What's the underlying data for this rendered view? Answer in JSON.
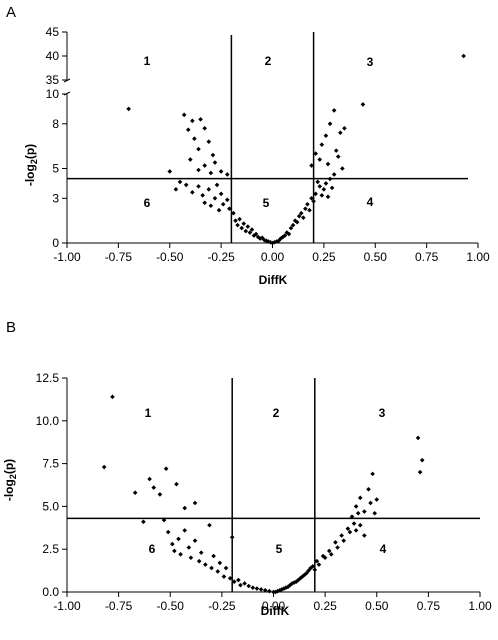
{
  "chart_data": [
    {
      "panel": "A",
      "type": "scatter",
      "xlabel": "DiffK",
      "ylabel": "-log2(p)",
      "xlim": [
        -1.0,
        1.0
      ],
      "x_ticks": [
        "-1.00",
        "-0.75",
        "-0.50",
        "-0.25",
        "0.00",
        "0.25",
        "0.50",
        "0.75",
        "1.00"
      ],
      "ylim": [
        0,
        45
      ],
      "y_axis_break": {
        "lower": [
          0,
          10
        ],
        "upper": [
          35,
          45
        ]
      },
      "y_ticks": [
        "0",
        "3",
        "5",
        "8",
        "10",
        "35",
        "40",
        "45"
      ],
      "thresholds": {
        "x": [
          -0.2,
          0.2
        ],
        "y": 4.32
      },
      "region_labels": [
        "1",
        "2",
        "3",
        "4",
        "5",
        "6"
      ],
      "series": [
        {
          "points": [
            [
              -0.7,
              9.0
            ],
            [
              0.93,
              40.0
            ],
            [
              0.44,
              9.3
            ],
            [
              -0.43,
              8.6
            ],
            [
              -0.39,
              8.2
            ],
            [
              -0.35,
              8.3
            ],
            [
              -0.41,
              7.6
            ],
            [
              -0.33,
              7.7
            ],
            [
              -0.38,
              7.0
            ],
            [
              -0.31,
              6.8
            ],
            [
              -0.36,
              6.3
            ],
            [
              -0.29,
              5.9
            ],
            [
              -0.4,
              5.6
            ],
            [
              -0.33,
              5.2
            ],
            [
              -0.28,
              5.4
            ],
            [
              -0.36,
              4.9
            ],
            [
              -0.3,
              4.7
            ],
            [
              -0.25,
              4.8
            ],
            [
              -0.22,
              4.6
            ],
            [
              -0.5,
              4.8
            ],
            [
              -0.45,
              4.1
            ],
            [
              -0.47,
              3.6
            ],
            [
              -0.42,
              3.9
            ],
            [
              -0.39,
              3.4
            ],
            [
              -0.36,
              3.8
            ],
            [
              -0.34,
              3.2
            ],
            [
              -0.31,
              3.6
            ],
            [
              -0.28,
              3.0
            ],
            [
              -0.27,
              3.9
            ],
            [
              -0.25,
              3.3
            ],
            [
              -0.24,
              2.6
            ],
            [
              -0.22,
              2.9
            ],
            [
              -0.21,
              2.3
            ],
            [
              -0.26,
              2.2
            ],
            [
              -0.3,
              2.5
            ],
            [
              -0.33,
              2.7
            ],
            [
              -0.19,
              2.0
            ],
            [
              -0.18,
              1.5
            ],
            [
              -0.17,
              1.2
            ],
            [
              -0.16,
              1.6
            ],
            [
              -0.15,
              1.0
            ],
            [
              -0.14,
              1.3
            ],
            [
              -0.13,
              0.8
            ],
            [
              -0.12,
              1.1
            ],
            [
              -0.11,
              0.7
            ],
            [
              -0.1,
              0.9
            ],
            [
              -0.09,
              0.5
            ],
            [
              -0.08,
              0.6
            ],
            [
              -0.07,
              0.4
            ],
            [
              -0.06,
              0.3
            ],
            [
              -0.05,
              0.35
            ],
            [
              -0.04,
              0.2
            ],
            [
              -0.03,
              0.15
            ],
            [
              -0.02,
              0.1
            ],
            [
              -0.01,
              0.05
            ],
            [
              0.0,
              0.0
            ],
            [
              0.01,
              0.05
            ],
            [
              0.02,
              0.1
            ],
            [
              0.03,
              0.15
            ],
            [
              0.04,
              0.3
            ],
            [
              0.05,
              0.4
            ],
            [
              0.06,
              0.5
            ],
            [
              0.07,
              0.7
            ],
            [
              0.08,
              0.6
            ],
            [
              0.09,
              1.0
            ],
            [
              0.1,
              1.2
            ],
            [
              0.11,
              1.5
            ],
            [
              0.12,
              1.4
            ],
            [
              0.13,
              1.8
            ],
            [
              0.14,
              2.0
            ],
            [
              0.15,
              1.7
            ],
            [
              0.16,
              2.3
            ],
            [
              0.17,
              2.6
            ],
            [
              0.18,
              2.2
            ],
            [
              0.19,
              3.0
            ],
            [
              0.2,
              2.8
            ],
            [
              0.21,
              3.3
            ],
            [
              0.23,
              3.8
            ],
            [
              0.24,
              3.2
            ],
            [
              0.22,
              4.1
            ],
            [
              0.25,
              3.6
            ],
            [
              0.26,
              4.0
            ],
            [
              0.27,
              3.1
            ],
            [
              0.28,
              4.3
            ],
            [
              0.29,
              3.7
            ],
            [
              0.19,
              5.2
            ],
            [
              0.21,
              6.0
            ],
            [
              0.23,
              5.6
            ],
            [
              0.24,
              6.6
            ],
            [
              0.26,
              7.2
            ],
            [
              0.28,
              8.0
            ],
            [
              0.3,
              8.9
            ],
            [
              0.31,
              6.2
            ],
            [
              0.33,
              7.4
            ],
            [
              0.35,
              7.7
            ],
            [
              0.27,
              5.3
            ],
            [
              0.32,
              5.8
            ],
            [
              0.34,
              5.0
            ],
            [
              0.3,
              4.6
            ]
          ]
        }
      ]
    },
    {
      "panel": "B",
      "type": "scatter",
      "xlabel": "DiffK",
      "ylabel": "-log2(p)",
      "xlim": [
        -1.0,
        1.0
      ],
      "x_ticks": [
        "-1.00",
        "-0.75",
        "-0.50",
        "-0.25",
        "0.00",
        "0.25",
        "0.50",
        "0.75",
        "1.00"
      ],
      "ylim": [
        0,
        12.5
      ],
      "y_ticks": [
        "0.0",
        "2.5",
        "5.0",
        "7.5",
        "10.0",
        "12.5"
      ],
      "thresholds": {
        "x": [
          -0.2,
          0.2
        ],
        "y": 4.3
      },
      "region_labels": [
        "1",
        "2",
        "3",
        "4",
        "5",
        "6"
      ],
      "series": [
        {
          "points": [
            [
              -0.78,
              11.4
            ],
            [
              -0.82,
              7.3
            ],
            [
              -0.67,
              5.8
            ],
            [
              -0.63,
              4.1
            ],
            [
              -0.6,
              6.6
            ],
            [
              -0.58,
              6.1
            ],
            [
              -0.55,
              5.7
            ],
            [
              -0.52,
              7.2
            ],
            [
              -0.47,
              6.3
            ],
            [
              -0.43,
              4.9
            ],
            [
              -0.38,
              5.2
            ],
            [
              -0.53,
              4.2
            ],
            [
              -0.51,
              3.5
            ],
            [
              -0.49,
              2.8
            ],
            [
              -0.48,
              2.4
            ],
            [
              -0.46,
              3.1
            ],
            [
              -0.45,
              2.2
            ],
            [
              -0.43,
              3.6
            ],
            [
              -0.41,
              2.6
            ],
            [
              -0.4,
              2.0
            ],
            [
              -0.38,
              3.0
            ],
            [
              -0.36,
              1.8
            ],
            [
              -0.35,
              2.3
            ],
            [
              -0.33,
              1.6
            ],
            [
              -0.31,
              3.9
            ],
            [
              -0.3,
              1.4
            ],
            [
              -0.29,
              2.1
            ],
            [
              -0.27,
              1.2
            ],
            [
              -0.26,
              1.7
            ],
            [
              -0.24,
              0.9
            ],
            [
              -0.23,
              1.4
            ],
            [
              -0.21,
              0.8
            ],
            [
              -0.2,
              3.2
            ],
            [
              -0.19,
              0.6
            ],
            [
              -0.17,
              0.7
            ],
            [
              -0.16,
              0.4
            ],
            [
              -0.14,
              0.5
            ],
            [
              -0.12,
              0.35
            ],
            [
              -0.1,
              0.25
            ],
            [
              -0.08,
              0.2
            ],
            [
              -0.06,
              0.15
            ],
            [
              -0.04,
              0.1
            ],
            [
              -0.02,
              0.05
            ],
            [
              0.0,
              0.0
            ],
            [
              0.01,
              0.0
            ],
            [
              0.02,
              0.05
            ],
            [
              0.03,
              0.1
            ],
            [
              0.04,
              0.15
            ],
            [
              0.05,
              0.2
            ],
            [
              0.06,
              0.25
            ],
            [
              0.07,
              0.3
            ],
            [
              0.08,
              0.4
            ],
            [
              0.09,
              0.5
            ],
            [
              0.1,
              0.55
            ],
            [
              0.11,
              0.6
            ],
            [
              0.12,
              0.7
            ],
            [
              0.13,
              0.8
            ],
            [
              0.14,
              0.9
            ],
            [
              0.15,
              1.0
            ],
            [
              0.16,
              1.1
            ],
            [
              0.17,
              1.25
            ],
            [
              0.18,
              1.4
            ],
            [
              0.19,
              1.5
            ],
            [
              0.2,
              1.3
            ],
            [
              0.21,
              1.8
            ],
            [
              0.22,
              1.6
            ],
            [
              0.24,
              2.1
            ],
            [
              0.25,
              2.0
            ],
            [
              0.27,
              2.4
            ],
            [
              0.28,
              2.2
            ],
            [
              0.3,
              2.9
            ],
            [
              0.31,
              2.6
            ],
            [
              0.33,
              3.3
            ],
            [
              0.34,
              3.0
            ],
            [
              0.36,
              3.7
            ],
            [
              0.37,
              3.5
            ],
            [
              0.39,
              4.0
            ],
            [
              0.4,
              3.6
            ],
            [
              0.42,
              3.9
            ],
            [
              0.44,
              3.3
            ],
            [
              0.41,
              4.6
            ],
            [
              0.38,
              4.4
            ],
            [
              0.4,
              5.0
            ],
            [
              0.42,
              5.5
            ],
            [
              0.44,
              4.7
            ],
            [
              0.46,
              6.0
            ],
            [
              0.47,
              5.2
            ],
            [
              0.48,
              6.9
            ],
            [
              0.5,
              5.4
            ],
            [
              0.49,
              4.6
            ],
            [
              0.7,
              9.0
            ],
            [
              0.72,
              7.7
            ],
            [
              0.71,
              7.0
            ]
          ]
        }
      ]
    }
  ]
}
